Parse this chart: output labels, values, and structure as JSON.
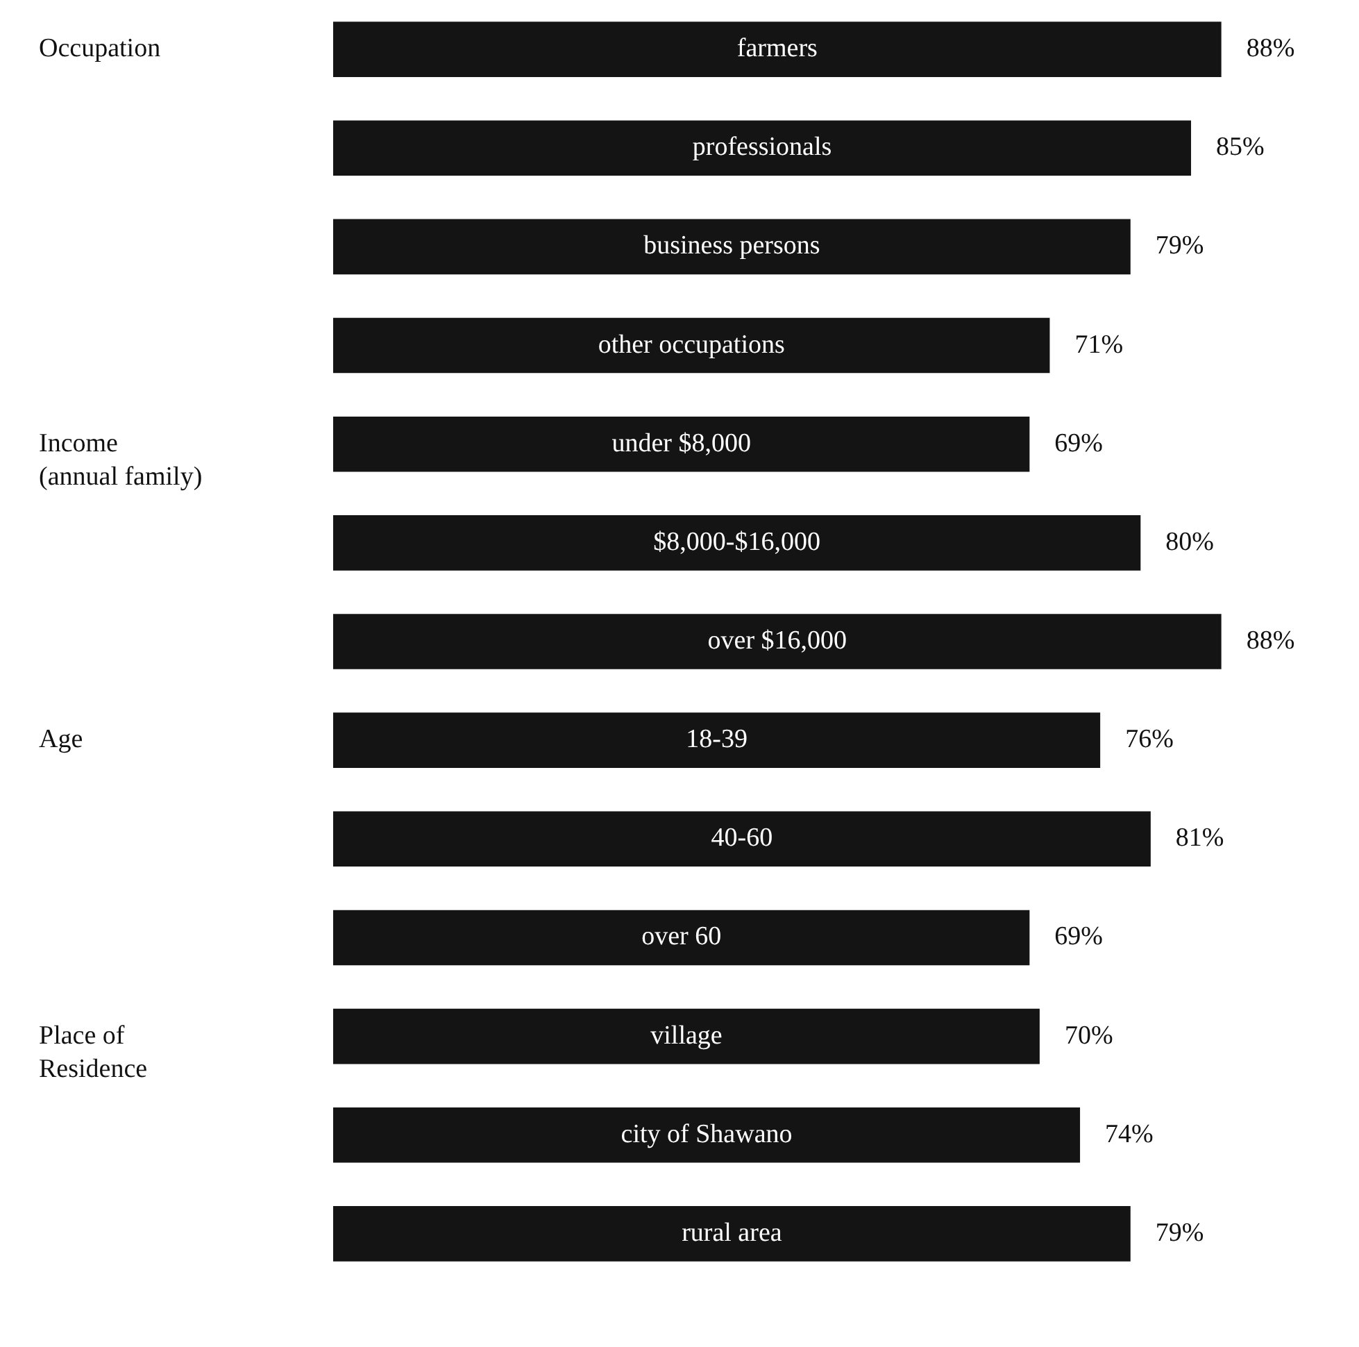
{
  "chart_data": {
    "type": "bar",
    "orientation": "horizontal",
    "color": "#141414",
    "categories": [
      "farmers",
      "professionals",
      "business persons",
      "other occupations",
      "under $8,000",
      "$8,000-$16,000",
      "over $16,000",
      "18-39",
      "40-60",
      "over 60",
      "village",
      "city of Shawano",
      "rural area"
    ],
    "values": [
      88,
      85,
      79,
      71,
      69,
      80,
      88,
      76,
      81,
      69,
      70,
      74,
      79
    ],
    "value_labels": [
      "88%",
      "85%",
      "79%",
      "71%",
      "69%",
      "80%",
      "88%",
      "76%",
      "81%",
      "69%",
      "70%",
      "74%",
      "79%"
    ],
    "annotations": [
      "Occupation",
      "Income\n(annual family)",
      "Age",
      "Place of\nResidence"
    ],
    "legend": false
  }
}
